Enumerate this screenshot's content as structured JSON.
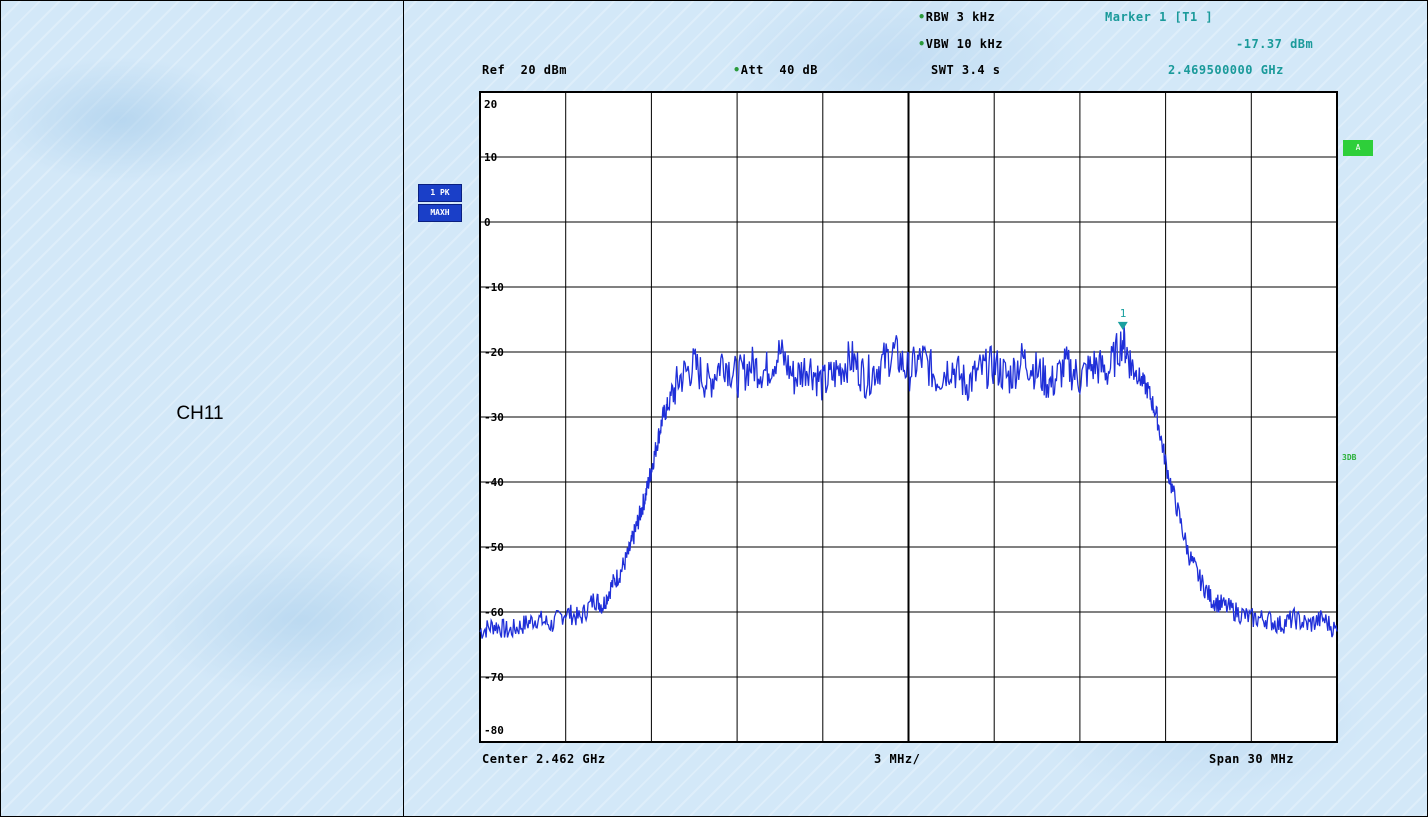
{
  "page": {
    "channel_label": "CH11"
  },
  "header": {
    "rbw": "RBW 3 kHz",
    "vbw": "VBW 10 kHz",
    "ref": "Ref  20 dBm",
    "att": "Att  40 dB",
    "swt": "SWT 3.4 s",
    "marker_title": "Marker 1 [T1 ]",
    "marker_level": "-17.37 dBm",
    "marker_freq": "2.469500000 GHz"
  },
  "side": {
    "trace_box_1": "1 PK",
    "trace_box_2": "MAXH",
    "right_box": "A",
    "right_label": "3DB"
  },
  "footer": {
    "center": "Center 2.462 GHz",
    "per_div": "3 MHz/",
    "span": "Span 30 MHz"
  },
  "colors": {
    "trace": "#1f2fd8",
    "grid": "#000000",
    "marker": "#1aa0a0"
  },
  "chart_data": {
    "type": "line",
    "title": "",
    "xlabel": "",
    "ylabel": "",
    "x_unit": "MHz offset from center (2.462 GHz)",
    "xlim": [
      -15,
      15
    ],
    "ylim": [
      -80,
      20
    ],
    "y_ticks": [
      20,
      10,
      0,
      -10,
      -20,
      -30,
      -40,
      -50,
      -60,
      -70,
      -80
    ],
    "y_tick_labels": [
      "20",
      "10",
      "0",
      "-10",
      "-20",
      "-30",
      "-40",
      "-50",
      "-60",
      "-70",
      "-80"
    ],
    "grid": true,
    "series": [
      {
        "values_x": [
          -15,
          -14.5,
          -14,
          -13.5,
          -13,
          -12.5,
          -12,
          -11.5,
          -11,
          -10.7,
          -10.4,
          -10.1,
          -9.8,
          -9.6,
          -9.4,
          -9.2,
          -9.0,
          -8.8,
          -8.6,
          -8.4,
          -8.0,
          -7.5,
          -7.0,
          -6.5,
          -6.0,
          -5.5,
          -5.0,
          -4.5,
          -4.0,
          -3.5,
          -3.0,
          -2.5,
          -2.0,
          -1.5,
          -1.0,
          -0.5,
          0,
          0.5,
          1.0,
          1.5,
          2.0,
          2.5,
          3.0,
          3.5,
          4.0,
          4.5,
          5.0,
          5.5,
          6.0,
          6.5,
          7.0,
          7.5,
          7.8,
          8.1,
          8.4,
          8.7,
          9.0,
          9.4,
          9.8,
          10.2,
          10.6,
          11.0,
          11.5,
          12.0,
          12.5,
          13.0,
          13.5,
          14.0,
          14.5,
          15.0
        ],
        "values_y": [
          -63,
          -62,
          -63,
          -62,
          -61,
          -62,
          -60,
          -61,
          -58,
          -59,
          -56,
          -54,
          -51,
          -48,
          -45,
          -42,
          -38,
          -34,
          -30,
          -28,
          -24,
          -22,
          -25,
          -21,
          -24,
          -22,
          -23,
          -20,
          -24,
          -22,
          -25,
          -23,
          -21,
          -24,
          -22,
          -20,
          -23,
          -21,
          -24,
          -22,
          -25,
          -23,
          -22,
          -24,
          -21,
          -23,
          -25,
          -22,
          -24,
          -22,
          -23,
          -18,
          -22,
          -24,
          -26,
          -30,
          -37,
          -44,
          -51,
          -55,
          -58,
          -59,
          -60,
          -61,
          -61,
          -62,
          -61,
          -62,
          -61,
          -63
        ]
      }
    ],
    "marker": {
      "label": "1",
      "x": 7.5,
      "y": -17.37
    }
  }
}
